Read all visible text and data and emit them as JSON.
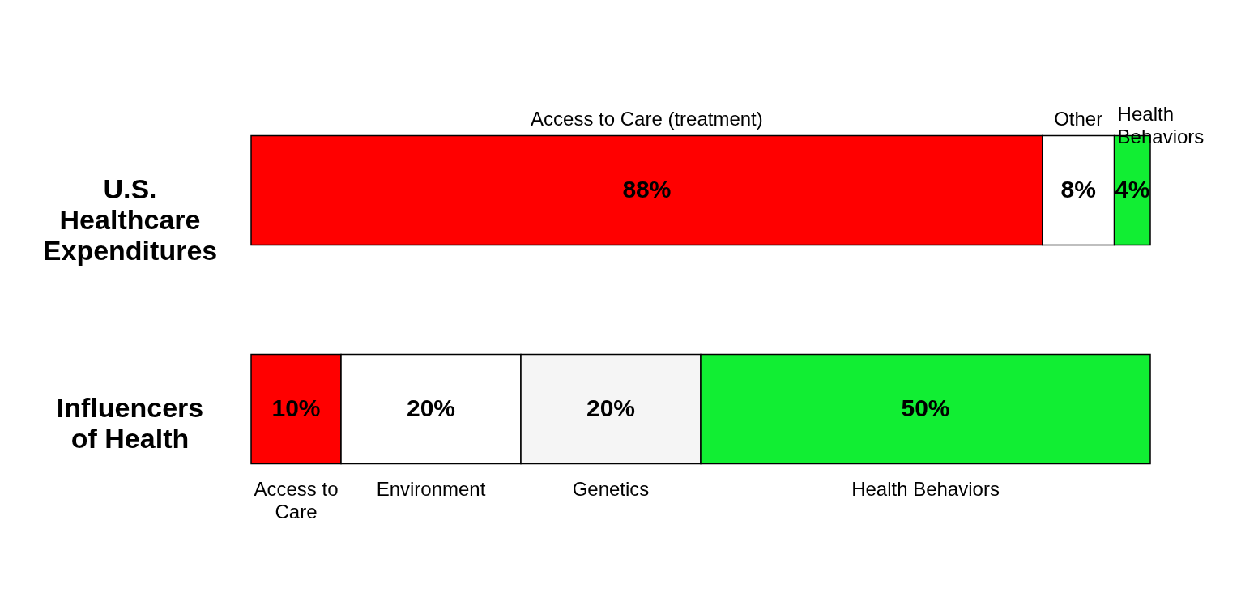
{
  "chart_data": {
    "type": "bar",
    "orientation": "horizontal",
    "stacked": true,
    "categories": [
      "U.S. Healthcare Expenditures",
      "Influencers of Health"
    ],
    "series": [
      {
        "name": "Access to Care (treatment)",
        "color": "#ff0000",
        "values": [
          88,
          null
        ],
        "value_labels": [
          "88%",
          null
        ]
      },
      {
        "name": "Other",
        "color": "#ffffff",
        "values": [
          8,
          null
        ],
        "value_labels": [
          "8%",
          null
        ]
      },
      {
        "name": "Health Behaviors",
        "color": "#11ee33",
        "values": [
          4,
          null
        ],
        "value_labels": [
          "4%",
          null
        ]
      },
      {
        "name": "Access to Care",
        "color": "#ff0000",
        "values": [
          null,
          10
        ],
        "value_labels": [
          null,
          "10%"
        ]
      },
      {
        "name": "Environment",
        "color": "#ffffff",
        "values": [
          null,
          20
        ],
        "value_labels": [
          null,
          "20%"
        ]
      },
      {
        "name": "Genetics",
        "color": "#f5f5f5",
        "values": [
          null,
          20
        ],
        "value_labels": [
          null,
          "20%"
        ]
      },
      {
        "name": "Health Behaviors",
        "color": "#11ee33",
        "values": [
          null,
          50
        ],
        "value_labels": [
          null,
          "50%"
        ]
      }
    ]
  }
}
